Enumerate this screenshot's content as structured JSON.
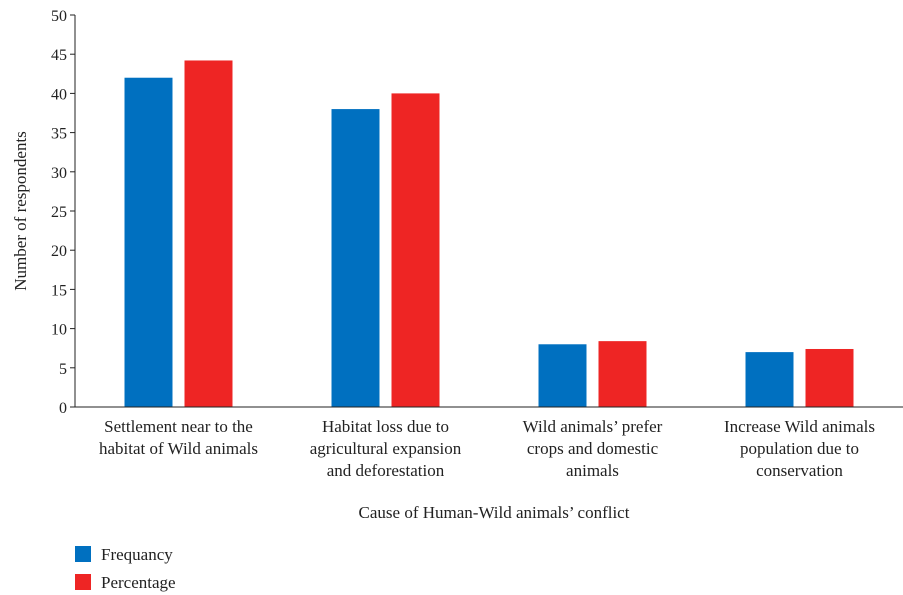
{
  "chart_data": {
    "type": "bar",
    "title": "",
    "xlabel": "Cause of Human-Wild animals’ conflict",
    "ylabel": "Number of respondents",
    "ylim": [
      0,
      50
    ],
    "yticks": [
      0,
      5,
      10,
      15,
      20,
      25,
      30,
      35,
      40,
      45,
      50
    ],
    "grid": false,
    "legend_position": "bottom-left",
    "categories": [
      [
        "Settlement near to the",
        "habitat of Wild animals"
      ],
      [
        "Habitat loss due to",
        "agricultural expansion",
        "and deforestation"
      ],
      [
        "Wild animals’ prefer",
        "crops and domestic",
        "animals"
      ],
      [
        "Increase Wild animals",
        "population due to",
        "conservation"
      ]
    ],
    "series": [
      {
        "name": "Frequancy",
        "color": "#0070c0",
        "values": [
          42,
          38,
          8,
          7
        ]
      },
      {
        "name": "Percentage",
        "color": "#ee2524",
        "values": [
          44.2,
          40,
          8.4,
          7.4
        ]
      }
    ]
  }
}
